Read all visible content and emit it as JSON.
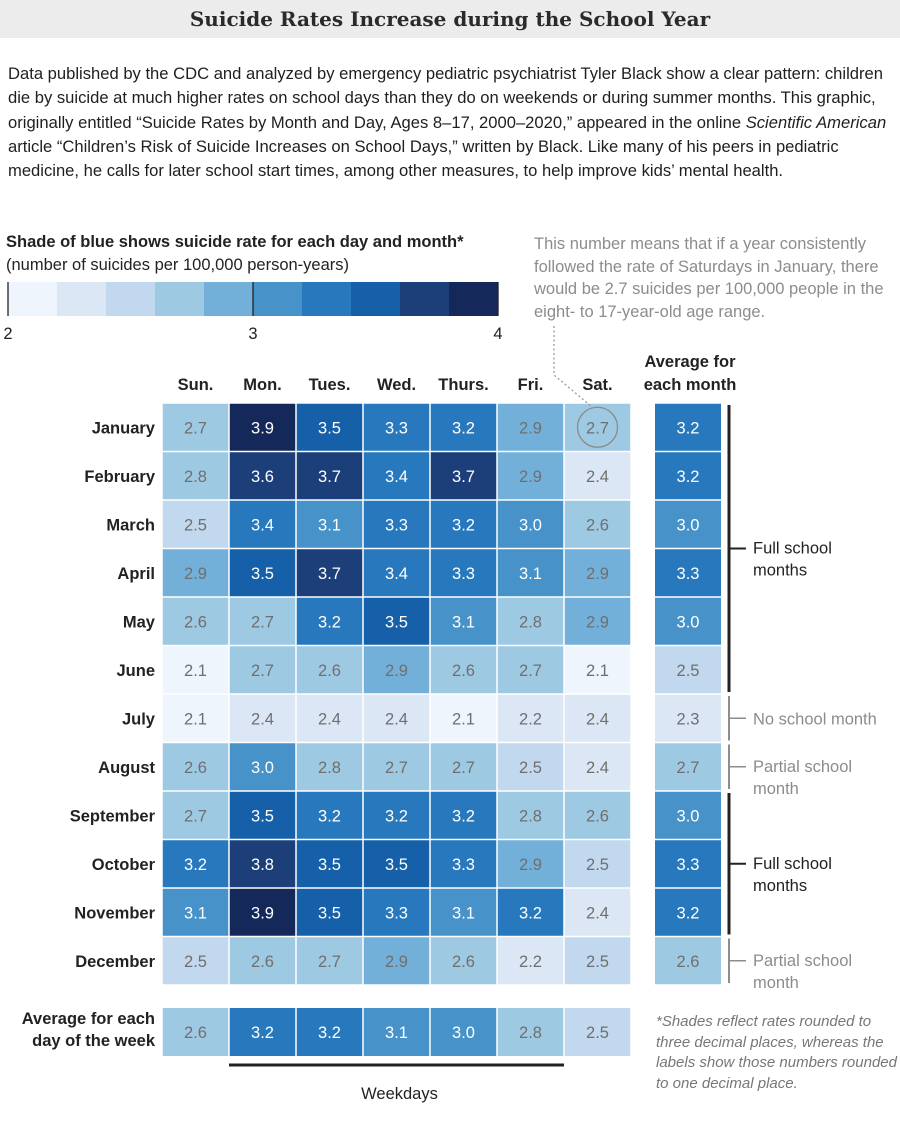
{
  "title": "Suicide Rates Increase during the School Year",
  "intro": {
    "part1": "Data published by the CDC and analyzed by emergency pediatric psychiatrist Tyler Black show a clear pattern: children die by suicide at much higher rates on school days than they do on weekends or during summer months. This graphic, originally entitled “Suicide Rates by Month and Day, Ages 8–17, 2000–2020,” appeared in the online ",
    "publication": "Scientific American",
    "part2": " article “Children’s Risk of Suicide Increases on School Days,” written by Black. Like many of his peers in pediatric medicine, he calls for later school start times, among other measures, to help improve kids’ mental health."
  },
  "legend": {
    "title": "Shade of blue shows suicide rate for each day and month*",
    "subtitle": "(number of suicides per 100,000 person-years)",
    "tick_labels": [
      "2",
      "3",
      "4"
    ],
    "colors": [
      "#eff5fc",
      "#dbe7f5",
      "#c1d8ee",
      "#9ec9e3",
      "#72b0da",
      "#4692c9",
      "#2778bd",
      "#1560a8",
      "#1c3f7a",
      "#142959"
    ]
  },
  "annotation": "This number means that if a year consistently followed the rate of Saturdays in January, there would be 2.7 suicides per 100,000 people in the eight- to 17-year-old age range.",
  "footnote": "*Shades reflect rates rounded to three decimal places, whereas the labels show those numbers rounded to one decimal place.",
  "chart_data": {
    "type": "heatmap",
    "columns": [
      "Sun.",
      "Mon.",
      "Tues.",
      "Wed.",
      "Thurs.",
      "Fri.",
      "Sat."
    ],
    "rows": [
      "January",
      "February",
      "March",
      "April",
      "May",
      "June",
      "July",
      "August",
      "September",
      "October",
      "November",
      "December"
    ],
    "values": [
      [
        2.7,
        3.9,
        3.5,
        3.3,
        3.2,
        2.9,
        2.7
      ],
      [
        2.8,
        3.6,
        3.7,
        3.4,
        3.7,
        2.9,
        2.4
      ],
      [
        2.5,
        3.4,
        3.1,
        3.3,
        3.2,
        3.0,
        2.6
      ],
      [
        2.9,
        3.5,
        3.7,
        3.4,
        3.3,
        3.1,
        2.9
      ],
      [
        2.6,
        2.7,
        3.2,
        3.5,
        3.1,
        2.8,
        2.9
      ],
      [
        2.1,
        2.7,
        2.6,
        2.9,
        2.6,
        2.7,
        2.1
      ],
      [
        2.1,
        2.4,
        2.4,
        2.4,
        2.1,
        2.2,
        2.4
      ],
      [
        2.6,
        3.0,
        2.8,
        2.7,
        2.7,
        2.5,
        2.4
      ],
      [
        2.7,
        3.5,
        3.2,
        3.2,
        3.2,
        2.8,
        2.6
      ],
      [
        3.2,
        3.8,
        3.5,
        3.5,
        3.3,
        2.9,
        2.5
      ],
      [
        3.1,
        3.9,
        3.5,
        3.3,
        3.1,
        3.2,
        2.4
      ],
      [
        2.5,
        2.6,
        2.7,
        2.9,
        2.6,
        2.2,
        2.5
      ]
    ],
    "month_average_label": "Average for each month",
    "month_averages": [
      3.2,
      3.2,
      3.0,
      3.3,
      3.0,
      2.5,
      2.3,
      2.7,
      3.0,
      3.3,
      3.2,
      2.6
    ],
    "day_average_label": "Average for each day of the week",
    "day_averages": [
      2.6,
      3.2,
      3.2,
      3.1,
      3.0,
      2.8,
      2.5
    ],
    "color_scale": {
      "min": 2,
      "max": 4
    },
    "highlighted_cell": {
      "row": "January",
      "column": "Sat."
    },
    "weekdays_label": "Weekdays",
    "school_periods": [
      {
        "label": "Full school months",
        "rows": [
          "January",
          "February",
          "March",
          "April",
          "May",
          "June"
        ],
        "emphasis": "strong"
      },
      {
        "label": "No school month",
        "rows": [
          "July"
        ],
        "emphasis": "light"
      },
      {
        "label": "Partial school month",
        "rows": [
          "August"
        ],
        "emphasis": "light"
      },
      {
        "label": "Full school months",
        "rows": [
          "September",
          "October",
          "November"
        ],
        "emphasis": "strong"
      },
      {
        "label": "Partial school month",
        "rows": [
          "December"
        ],
        "emphasis": "light"
      }
    ]
  }
}
